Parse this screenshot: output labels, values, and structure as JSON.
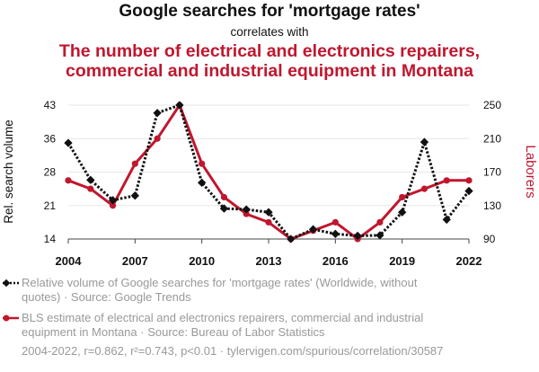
{
  "title": "Google searches for 'mortgage rates'",
  "subtitle": "correlates with",
  "title2_line1": "The number of electrical and electronics repairers,",
  "title2_line2": "commercial and industrial equipment in Montana",
  "colors": {
    "series1": "#111111",
    "series2": "#c0172f",
    "grid": "#e6e6e6"
  },
  "legend": {
    "series1": "Relative volume of Google searches for 'mortgage rates' (Worldwide, without quotes) · Source: Google Trends",
    "series2": "BLS estimate of electrical and electronics repairers, commercial and industrial equipment in Montana · Source: Bureau of Labor Statistics"
  },
  "footer": "2004-2022, r=0.862, r²=0.743, p<0.01 · tylervigen.com/spurious/correlation/30587",
  "chart_data": {
    "type": "line",
    "x": [
      2004,
      2005,
      2006,
      2007,
      2008,
      2009,
      2010,
      2011,
      2012,
      2013,
      2014,
      2015,
      2016,
      2017,
      2018,
      2019,
      2020,
      2021,
      2022
    ],
    "xticks": [
      "2004",
      "2007",
      "2010",
      "2013",
      "2016",
      "2019",
      "2022"
    ],
    "series": [
      {
        "name": "Google searches for 'mortgage rates'",
        "axis": "left",
        "style": "dotted-diamond",
        "values": [
          34.8,
          26.8,
          22.4,
          23.4,
          41.3,
          43,
          26.2,
          20.6,
          20.4,
          19.8,
          14,
          16.1,
          15.1,
          14.7,
          14.8,
          19.8,
          35,
          18.2,
          24.4
        ]
      },
      {
        "name": "Electrical and electronics repairers in Montana",
        "axis": "right",
        "style": "solid-circle",
        "values": [
          160,
          150,
          130,
          180,
          210,
          250,
          180,
          140,
          120,
          110,
          90,
          100,
          110,
          90,
          110,
          140,
          150,
          160,
          160
        ]
      }
    ],
    "ylabel_left": "Rel. search volume",
    "ylabel_right": "Laborers",
    "yticks_left": [
      "14",
      "21",
      "28",
      "36",
      "43"
    ],
    "yticks_right": [
      "90",
      "130",
      "170",
      "210",
      "250"
    ],
    "ylim_left": [
      14,
      43
    ],
    "ylim_right": [
      90,
      250
    ]
  }
}
